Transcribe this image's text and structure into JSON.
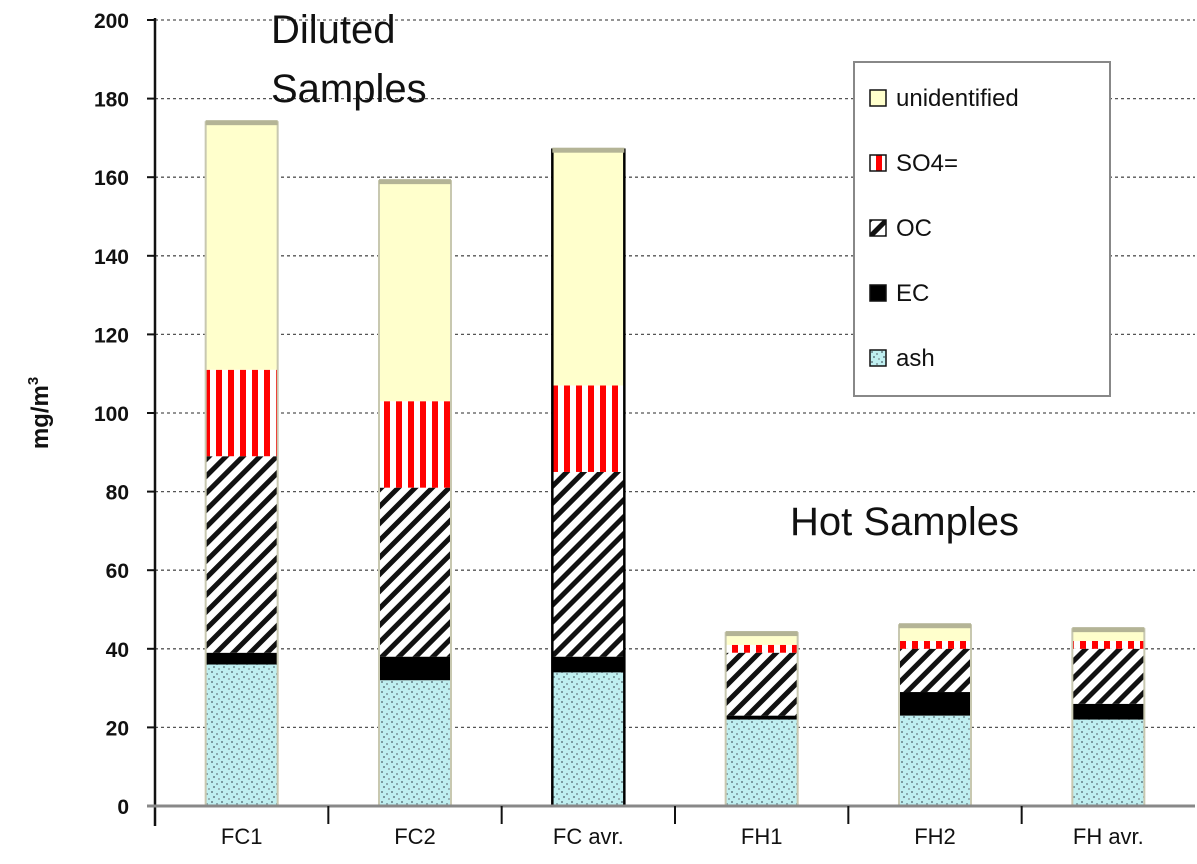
{
  "chart_data": {
    "type": "bar",
    "stacked": true,
    "categories": [
      "FC1",
      "FC2",
      "FC avr.",
      "FH1",
      "FH2",
      "FH avr."
    ],
    "series": [
      {
        "name": "ash",
        "values": [
          36,
          32,
          34,
          22,
          23,
          22
        ],
        "color": "#bfeff0"
      },
      {
        "name": "EC",
        "values": [
          3,
          6,
          4,
          1,
          6,
          4
        ],
        "color": "#000000"
      },
      {
        "name": "OC",
        "values": [
          50,
          43,
          47,
          16,
          11,
          14
        ],
        "color": "#ffffff"
      },
      {
        "name": "SO4=",
        "values": [
          22,
          22,
          22,
          2,
          2,
          2
        ],
        "color": "#ff0000"
      },
      {
        "name": "unidentified",
        "values": [
          63,
          56,
          60,
          3,
          4,
          3
        ],
        "color": "#ffffcc"
      }
    ],
    "ylabel": "mg/m",
    "ylabel_superscript": "3",
    "ylim": [
      0,
      200
    ],
    "yticks": [
      0,
      20,
      40,
      60,
      80,
      100,
      120,
      140,
      160,
      180,
      200
    ],
    "grid": true,
    "legend_position": "top-right",
    "annotations": [
      {
        "lines": [
          "Diluted",
          "Samples"
        ]
      },
      {
        "lines": [
          "Hot Samples"
        ]
      }
    ]
  }
}
